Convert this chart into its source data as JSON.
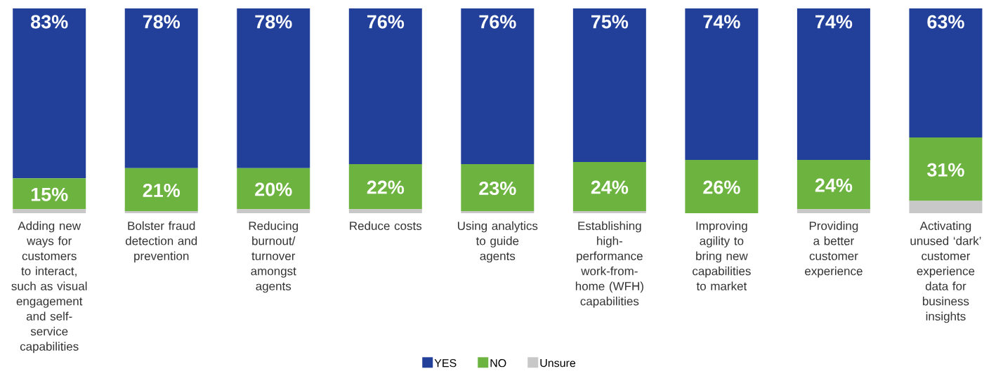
{
  "chart_data": {
    "type": "bar",
    "stacked": true,
    "categories": [
      "Adding new ways for customers to interact, such as visual engagement and self-service capabilities",
      "Bolster fraud detection and prevention",
      "Reducing burnout/ turnover amongst agents",
      "Reduce costs",
      "Using analytics to guide agents",
      "Establishing high-performance work-from-home (WFH) capabilities",
      "Improving agility to bring new capabilities to market",
      "Providing a better customer experience",
      "Activating unused ‘dark’ customer experience data for business insights"
    ],
    "series": [
      {
        "name": "Unsure",
        "color": "#c8c8c8",
        "values": [
          2,
          1,
          2,
          2,
          1,
          1,
          0,
          2,
          6
        ]
      },
      {
        "name": "NO",
        "color": "#6db33f",
        "values": [
          15,
          21,
          20,
          22,
          23,
          24,
          26,
          24,
          31
        ],
        "value_labels": [
          "15%",
          "21%",
          "20%",
          "22%",
          "23%",
          "24%",
          "26%",
          "24%",
          "31%"
        ]
      },
      {
        "name": "YES",
        "color": "#22409a",
        "values": [
          83,
          78,
          78,
          76,
          76,
          75,
          74,
          74,
          63
        ],
        "value_labels": [
          "83%",
          "78%",
          "78%",
          "76%",
          "76%",
          "75%",
          "74%",
          "74%",
          "63%"
        ]
      }
    ],
    "ylim": [
      0,
      100
    ],
    "legend": "bottom"
  }
}
